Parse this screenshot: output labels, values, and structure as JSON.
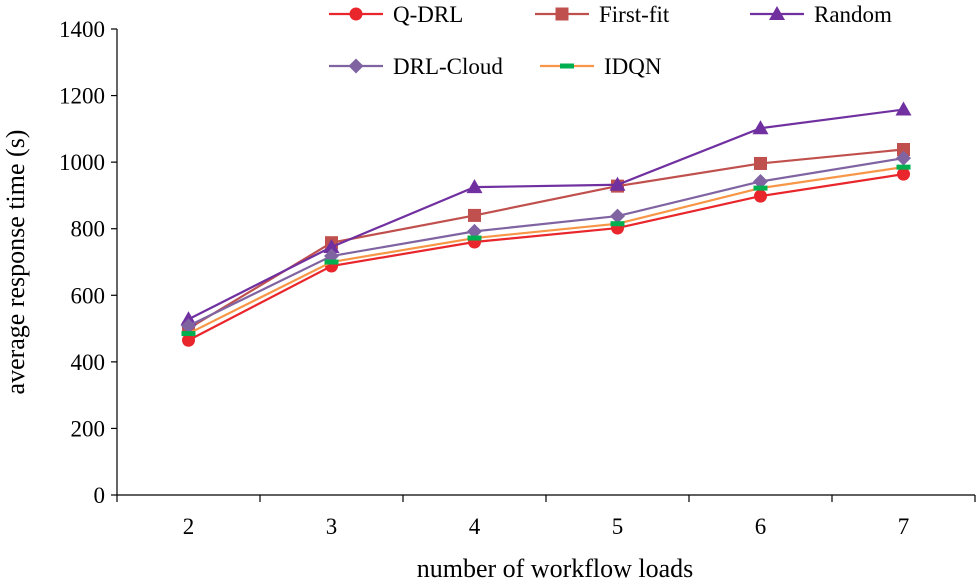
{
  "chart_data": {
    "type": "line",
    "title": "",
    "xlabel": "number of workflow loads",
    "ylabel": "average response time (s)",
    "categories": [
      "2",
      "3",
      "4",
      "5",
      "6",
      "7"
    ],
    "ylim": [
      0,
      1400
    ],
    "yticks": [
      "0",
      "200",
      "400",
      "600",
      "800",
      "1000",
      "1200",
      "1400"
    ],
    "grid": false,
    "legend_position": "top-right",
    "series": [
      {
        "name": "Q-DRL",
        "color": "#e8262b",
        "marker": "circle",
        "values": [
          465,
          688,
          760,
          802,
          898,
          964
        ]
      },
      {
        "name": "First-fit",
        "color": "#c0504d",
        "marker": "square",
        "values": [
          500,
          758,
          840,
          928,
          996,
          1038
        ]
      },
      {
        "name": "Random",
        "color": "#7030a0",
        "marker": "triangle",
        "values": [
          528,
          745,
          925,
          932,
          1102,
          1158
        ]
      },
      {
        "name": "DRL-Cloud",
        "color": "#8064a2",
        "marker": "diamond",
        "values": [
          508,
          718,
          792,
          838,
          942,
          1012
        ]
      },
      {
        "name": "IDQN",
        "color": "#f79646",
        "marker": "dash",
        "markerColor": "#00b050",
        "values": [
          485,
          700,
          772,
          815,
          922,
          985
        ]
      }
    ]
  }
}
